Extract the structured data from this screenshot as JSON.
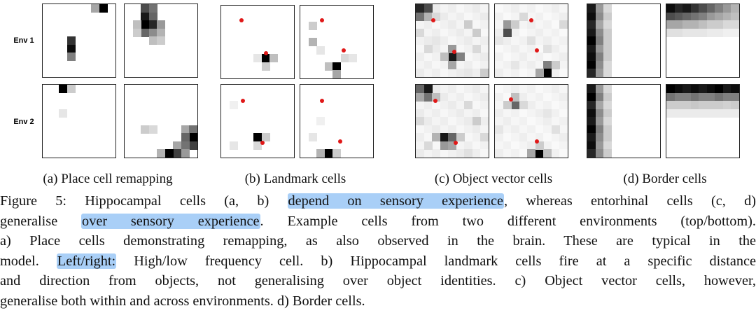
{
  "rows": [
    "Env 1",
    "Env 2"
  ],
  "subcaptions": [
    "(a) Place cell remapping",
    "(b) Landmark cells",
    "(c) Object vector cells",
    "(d) Border cells"
  ],
  "caption": {
    "line1": {
      "pre": "Figure 5: Hippocampal cells (a, b) ",
      "hl": "depend on sensory experience",
      "post": ", whereas entorhinal cells (c, d)"
    },
    "line2": {
      "pre": "generalise ",
      "hl": "over sensory experience",
      "post": ". Example cells from two different environments (top/bottom)."
    },
    "line3": "a) Place cells demonstrating remapping, as also observed in the brain.  These are typical in the",
    "line4": {
      "pre": "model. ",
      "hl": "Left/right:",
      "post": " High/low frequency cell. b) Hippocampal landmark cells fire at a specific distance"
    },
    "line5": "and direction from objects, not generalising over object identities. c) Object vector cells, however,",
    "line6": "generalise both within and across environments. d) Border cells."
  },
  "colors": {
    "highlight": "#a9cff7",
    "object_marker": "#e01818"
  },
  "ratemaps": [
    {
      "name": "place-env1-high",
      "cells": [
        [
          7,
          0,
          1.0
        ],
        [
          6,
          0,
          0.35
        ],
        [
          3,
          4,
          0.8
        ],
        [
          3,
          5,
          0.95
        ],
        [
          3,
          6,
          0.5
        ]
      ]
    },
    {
      "name": "place-env1-low",
      "cells": [
        [
          2,
          0,
          0.7
        ],
        [
          3,
          0,
          0.55
        ],
        [
          2,
          1,
          0.9
        ],
        [
          3,
          1,
          0.6
        ],
        [
          2,
          2,
          1.0
        ],
        [
          3,
          2,
          0.85
        ],
        [
          4,
          2,
          0.4
        ],
        [
          1,
          2,
          0.25
        ],
        [
          2,
          3,
          0.6
        ],
        [
          3,
          3,
          0.45
        ],
        [
          4,
          3,
          0.3
        ],
        [
          1,
          3,
          0.2
        ],
        [
          3,
          4,
          0.25
        ],
        [
          4,
          4,
          0.2
        ]
      ]
    },
    {
      "name": "landmark-env1-a",
      "cells": [
        [
          5,
          6,
          1.0
        ],
        [
          6,
          6,
          0.25
        ],
        [
          5,
          7,
          0.2
        ],
        [
          4,
          6,
          0.1
        ]
      ],
      "dots": [
        [
          0.28,
          0.2
        ],
        [
          0.62,
          0.65
        ]
      ]
    },
    {
      "name": "landmark-env1-b",
      "cells": [
        [
          1,
          2,
          0.2
        ],
        [
          1,
          4,
          0.3
        ],
        [
          2,
          5,
          0.1
        ],
        [
          3,
          7,
          0.25
        ],
        [
          4,
          7,
          1.0
        ],
        [
          4,
          8,
          0.35
        ],
        [
          5,
          6,
          0.15
        ],
        [
          6,
          6,
          0.1
        ]
      ],
      "dots": [
        [
          0.3,
          0.2
        ],
        [
          0.6,
          0.62
        ]
      ]
    },
    {
      "name": "object-env1-a",
      "cells": [
        [
          0,
          0,
          0.85
        ],
        [
          1,
          0,
          0.7
        ],
        [
          0,
          1,
          0.55
        ],
        [
          1,
          1,
          0.3
        ],
        [
          2,
          1,
          0.15
        ],
        [
          4,
          6,
          0.9
        ],
        [
          4,
          5,
          0.4
        ],
        [
          5,
          6,
          0.5
        ],
        [
          4,
          7,
          0.35
        ],
        [
          3,
          6,
          0.25
        ],
        [
          1,
          5,
          0.15
        ],
        [
          6,
          2,
          0.2
        ],
        [
          7,
          3,
          0.2
        ],
        [
          0,
          3,
          0.15
        ],
        [
          2,
          4,
          0.1
        ],
        [
          8,
          8,
          0.2
        ],
        [
          7,
          5,
          0.15
        ],
        [
          6,
          8,
          0.1
        ]
      ],
      "dots": [
        [
          0.24,
          0.22
        ],
        [
          0.53,
          0.65
        ]
      ],
      "bg": 0.06
    },
    {
      "name": "object-env1-b",
      "cells": [
        [
          1,
          3,
          0.7
        ],
        [
          1,
          2,
          0.4
        ],
        [
          2,
          2,
          0.2
        ],
        [
          3,
          1,
          0.15
        ],
        [
          6,
          7,
          0.5
        ],
        [
          6,
          8,
          1.0
        ],
        [
          5,
          8,
          0.35
        ],
        [
          7,
          7,
          0.2
        ],
        [
          4,
          4,
          0.12
        ],
        [
          0,
          4,
          0.1
        ],
        [
          8,
          2,
          0.15
        ],
        [
          2,
          7,
          0.1
        ],
        [
          6,
          5,
          0.12
        ]
      ],
      "dots": [
        [
          0.5,
          0.22
        ],
        [
          0.58,
          0.63
        ]
      ],
      "bg": 0.05
    },
    {
      "name": "border-env1-left",
      "cells": [
        [
          0,
          0,
          0.9
        ],
        [
          0,
          1,
          0.95
        ],
        [
          0,
          2,
          0.85
        ],
        [
          0,
          3,
          0.9
        ],
        [
          0,
          4,
          1.0
        ],
        [
          0,
          5,
          0.9
        ],
        [
          0,
          6,
          0.95
        ],
        [
          0,
          7,
          1.0
        ],
        [
          0,
          8,
          0.85
        ],
        [
          1,
          0,
          0.4
        ],
        [
          1,
          1,
          0.45
        ],
        [
          1,
          2,
          0.35
        ],
        [
          1,
          3,
          0.45
        ],
        [
          1,
          4,
          0.5
        ],
        [
          1,
          5,
          0.4
        ],
        [
          1,
          6,
          0.5
        ],
        [
          1,
          7,
          0.45
        ],
        [
          1,
          8,
          0.4
        ],
        [
          2,
          0,
          0.15
        ],
        [
          2,
          1,
          0.2
        ],
        [
          2,
          2,
          0.15
        ],
        [
          2,
          3,
          0.2
        ],
        [
          2,
          4,
          0.2
        ],
        [
          2,
          5,
          0.2
        ],
        [
          2,
          6,
          0.2
        ],
        [
          2,
          7,
          0.15
        ],
        [
          2,
          8,
          0.15
        ]
      ]
    },
    {
      "name": "border-env1-top",
      "cells": [
        [
          0,
          0,
          0.95
        ],
        [
          1,
          0,
          0.85
        ],
        [
          2,
          0,
          0.9
        ],
        [
          3,
          0,
          0.8
        ],
        [
          4,
          0,
          0.7
        ],
        [
          5,
          0,
          0.6
        ],
        [
          6,
          0,
          0.5
        ],
        [
          7,
          0,
          0.4
        ],
        [
          8,
          0,
          0.3
        ],
        [
          0,
          1,
          0.7
        ],
        [
          1,
          1,
          0.65
        ],
        [
          2,
          1,
          0.6
        ],
        [
          3,
          1,
          0.55
        ],
        [
          4,
          1,
          0.5
        ],
        [
          5,
          1,
          0.4
        ],
        [
          6,
          1,
          0.35
        ],
        [
          7,
          1,
          0.3
        ],
        [
          8,
          1,
          0.25
        ],
        [
          0,
          2,
          0.35
        ],
        [
          1,
          2,
          0.35
        ],
        [
          2,
          2,
          0.3
        ],
        [
          3,
          2,
          0.3
        ],
        [
          4,
          2,
          0.25
        ],
        [
          5,
          2,
          0.2
        ],
        [
          6,
          2,
          0.2
        ],
        [
          7,
          2,
          0.15
        ],
        [
          8,
          2,
          0.15
        ],
        [
          0,
          3,
          0.12
        ],
        [
          1,
          3,
          0.12
        ],
        [
          2,
          3,
          0.1
        ],
        [
          3,
          3,
          0.1
        ],
        [
          4,
          3,
          0.1
        ],
        [
          5,
          3,
          0.08
        ],
        [
          6,
          3,
          0.08
        ],
        [
          7,
          3,
          0.06
        ],
        [
          8,
          3,
          0.06
        ]
      ]
    },
    {
      "name": "place-env2-high",
      "cells": [
        [
          2,
          0,
          1.0
        ],
        [
          3,
          0,
          0.2
        ],
        [
          2,
          3,
          0.1
        ]
      ]
    },
    {
      "name": "place-env2-low",
      "cells": [
        [
          2,
          5,
          0.2
        ],
        [
          3,
          5,
          0.15
        ],
        [
          7,
          5,
          0.35
        ],
        [
          8,
          5,
          0.55
        ],
        [
          8,
          6,
          1.0
        ],
        [
          7,
          6,
          0.6
        ],
        [
          8,
          7,
          0.75
        ],
        [
          7,
          7,
          0.55
        ],
        [
          6,
          7,
          0.35
        ],
        [
          6,
          8,
          0.75
        ],
        [
          5,
          8,
          1.0
        ],
        [
          7,
          8,
          0.4
        ],
        [
          4,
          8,
          0.3
        ]
      ]
    },
    {
      "name": "landmark-env2-a",
      "cells": [
        [
          4,
          6,
          1.0
        ],
        [
          5,
          6,
          0.2
        ],
        [
          4,
          7,
          0.15
        ],
        [
          1,
          7,
          0.1
        ],
        [
          1,
          2,
          0.06
        ]
      ],
      "dots": [
        [
          0.3,
          0.22
        ],
        [
          0.57,
          0.8
        ]
      ]
    },
    {
      "name": "landmark-env2-b",
      "cells": [
        [
          3,
          8,
          1.0
        ],
        [
          2,
          8,
          0.3
        ],
        [
          4,
          8,
          0.2
        ],
        [
          1,
          6,
          0.1
        ],
        [
          2,
          4,
          0.06
        ]
      ],
      "dots": [
        [
          0.3,
          0.22
        ],
        [
          0.55,
          0.78
        ]
      ]
    },
    {
      "name": "object-env2-a",
      "cells": [
        [
          1,
          0,
          0.9
        ],
        [
          0,
          0,
          0.6
        ],
        [
          1,
          1,
          0.55
        ],
        [
          2,
          1,
          0.25
        ],
        [
          0,
          1,
          0.35
        ],
        [
          3,
          6,
          0.9
        ],
        [
          4,
          6,
          0.6
        ],
        [
          3,
          7,
          0.4
        ],
        [
          2,
          6,
          0.3
        ],
        [
          4,
          7,
          0.35
        ],
        [
          5,
          6,
          0.2
        ],
        [
          6,
          2,
          0.15
        ],
        [
          7,
          4,
          0.2
        ],
        [
          0,
          4,
          0.15
        ],
        [
          8,
          6,
          0.15
        ],
        [
          1,
          7,
          0.15
        ],
        [
          6,
          8,
          0.12
        ]
      ],
      "dots": [
        [
          0.27,
          0.22
        ],
        [
          0.55,
          0.8
        ]
      ],
      "bg": 0.06
    },
    {
      "name": "object-env2-b",
      "cells": [
        [
          2,
          2,
          0.6
        ],
        [
          2,
          1,
          0.25
        ],
        [
          1,
          2,
          0.2
        ],
        [
          3,
          2,
          0.15
        ],
        [
          5,
          8,
          1.0
        ],
        [
          4,
          8,
          0.35
        ],
        [
          6,
          8,
          0.25
        ],
        [
          5,
          7,
          0.2
        ],
        [
          7,
          5,
          0.12
        ],
        [
          0,
          5,
          0.1
        ],
        [
          6,
          3,
          0.1
        ]
      ],
      "dots": [
        [
          0.22,
          0.2
        ],
        [
          0.58,
          0.78
        ]
      ],
      "bg": 0.05
    },
    {
      "name": "border-env2-left",
      "cells": [
        [
          0,
          0,
          0.9
        ],
        [
          0,
          1,
          1.0
        ],
        [
          0,
          2,
          0.85
        ],
        [
          0,
          3,
          0.95
        ],
        [
          0,
          4,
          0.9
        ],
        [
          0,
          5,
          1.0
        ],
        [
          0,
          6,
          0.9
        ],
        [
          0,
          7,
          0.95
        ],
        [
          0,
          8,
          0.85
        ],
        [
          1,
          0,
          0.4
        ],
        [
          1,
          1,
          0.5
        ],
        [
          1,
          2,
          0.35
        ],
        [
          1,
          3,
          0.45
        ],
        [
          1,
          4,
          0.4
        ],
        [
          1,
          5,
          0.5
        ],
        [
          1,
          6,
          0.45
        ],
        [
          1,
          7,
          0.4
        ],
        [
          1,
          8,
          0.45
        ],
        [
          2,
          0,
          0.15
        ],
        [
          2,
          1,
          0.2
        ],
        [
          2,
          2,
          0.15
        ],
        [
          2,
          3,
          0.2
        ],
        [
          2,
          4,
          0.15
        ],
        [
          2,
          5,
          0.2
        ],
        [
          2,
          6,
          0.2
        ],
        [
          2,
          7,
          0.15
        ],
        [
          2,
          8,
          0.2
        ]
      ]
    },
    {
      "name": "border-env2-top",
      "cells": [
        [
          0,
          0,
          1.0
        ],
        [
          1,
          0,
          0.95
        ],
        [
          2,
          0,
          0.9
        ],
        [
          3,
          0,
          0.95
        ],
        [
          4,
          0,
          0.9
        ],
        [
          5,
          0,
          0.95
        ],
        [
          6,
          0,
          1.0
        ],
        [
          7,
          0,
          0.9
        ],
        [
          8,
          0,
          0.95
        ],
        [
          0,
          1,
          0.55
        ],
        [
          1,
          1,
          0.5
        ],
        [
          2,
          1,
          0.5
        ],
        [
          3,
          1,
          0.55
        ],
        [
          4,
          1,
          0.5
        ],
        [
          5,
          1,
          0.5
        ],
        [
          6,
          1,
          0.55
        ],
        [
          7,
          1,
          0.5
        ],
        [
          8,
          1,
          0.5
        ],
        [
          0,
          2,
          0.2
        ],
        [
          1,
          2,
          0.2
        ],
        [
          2,
          2,
          0.2
        ],
        [
          3,
          2,
          0.22
        ],
        [
          4,
          2,
          0.2
        ],
        [
          5,
          2,
          0.2
        ],
        [
          6,
          2,
          0.2
        ],
        [
          7,
          2,
          0.18
        ],
        [
          8,
          2,
          0.2
        ],
        [
          0,
          3,
          0.08
        ],
        [
          1,
          3,
          0.08
        ],
        [
          2,
          3,
          0.08
        ],
        [
          3,
          3,
          0.08
        ],
        [
          4,
          3,
          0.08
        ],
        [
          5,
          3,
          0.08
        ],
        [
          6,
          3,
          0.08
        ],
        [
          7,
          3,
          0.08
        ],
        [
          8,
          3,
          0.08
        ]
      ]
    }
  ]
}
